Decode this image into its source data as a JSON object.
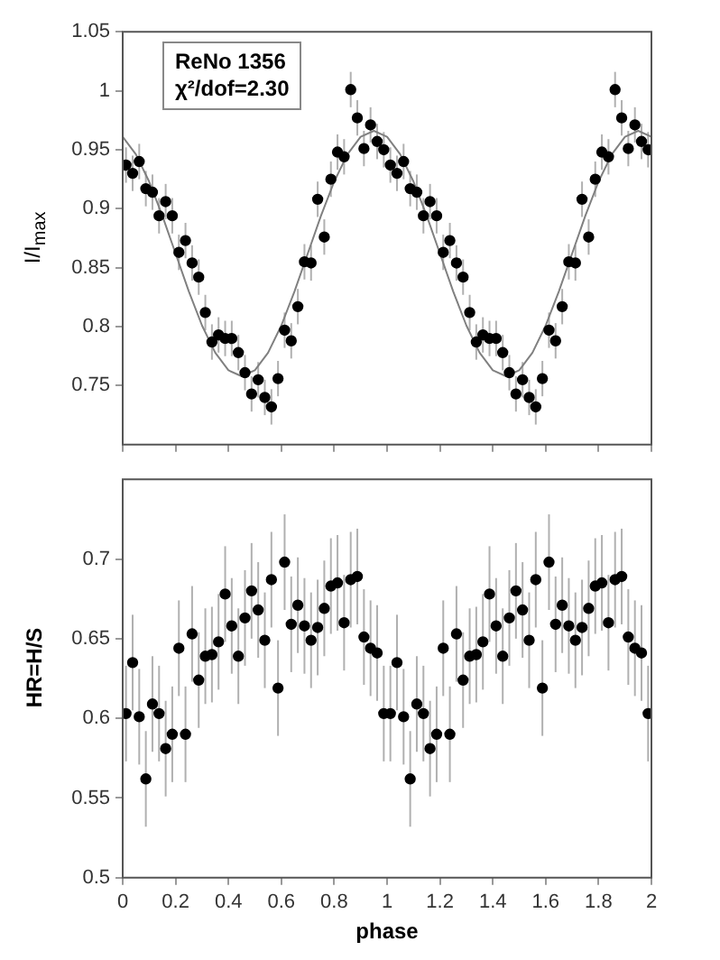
{
  "chart_data": [
    {
      "type": "scatter",
      "ylabel": "I/I$_{max}$",
      "annotations": [
        "ReNo 1356",
        "χ²/dof=2.30"
      ],
      "xlim": [
        0,
        2
      ],
      "xticks": [
        0,
        0.2,
        0.4,
        0.6,
        0.8,
        1,
        1.2,
        1.4,
        1.6,
        1.8,
        2
      ],
      "ylim": [
        0.7,
        1.05
      ],
      "yticks": [
        0.75,
        0.8,
        0.85,
        0.9,
        0.95,
        1,
        1.05
      ],
      "tick_labels": "y",
      "grid": false,
      "legend": false,
      "marker": "circle",
      "series": [
        {
          "type": "scatter",
          "color": "#000000",
          "x": [
            0.0125,
            0.0375,
            0.0625,
            0.0875,
            0.1125,
            0.1375,
            0.1625,
            0.1875,
            0.2125,
            0.2375,
            0.2625,
            0.2875,
            0.3125,
            0.3375,
            0.3625,
            0.3875,
            0.4125,
            0.4375,
            0.4625,
            0.4875,
            0.5125,
            0.5375,
            0.5625,
            0.5875,
            0.6125,
            0.6375,
            0.6625,
            0.6875,
            0.7125,
            0.7375,
            0.7625,
            0.7875,
            0.8125,
            0.8375,
            0.8625,
            0.8875,
            0.9125,
            0.9375,
            0.9625,
            0.9875,
            1.0125,
            1.0375,
            1.0625,
            1.0875,
            1.1125,
            1.1375,
            1.1625,
            1.1875,
            1.2125,
            1.2375,
            1.2625,
            1.2875,
            1.3125,
            1.3375,
            1.3625,
            1.3875,
            1.4125,
            1.4375,
            1.4625,
            1.4875,
            1.5125,
            1.5375,
            1.5625,
            1.5875,
            1.6125,
            1.6375,
            1.6625,
            1.6875,
            1.7125,
            1.7375,
            1.7625,
            1.7875,
            1.8125,
            1.8375,
            1.8625,
            1.8875,
            1.9125,
            1.9375,
            1.9625,
            1.9875
          ],
          "values": [
            0.937,
            0.93,
            0.94,
            0.917,
            0.914,
            0.894,
            0.906,
            0.894,
            0.863,
            0.873,
            0.854,
            0.842,
            0.812,
            0.787,
            0.793,
            0.79,
            0.79,
            0.778,
            0.761,
            0.743,
            0.755,
            0.74,
            0.732,
            0.756,
            0.797,
            0.788,
            0.817,
            0.855,
            0.854,
            0.908,
            0.876,
            0.925,
            0.948,
            0.944,
            1.001,
            0.977,
            0.951,
            0.971,
            0.957,
            0.95,
            0.937,
            0.93,
            0.94,
            0.917,
            0.914,
            0.894,
            0.906,
            0.894,
            0.863,
            0.873,
            0.854,
            0.842,
            0.812,
            0.787,
            0.793,
            0.79,
            0.79,
            0.778,
            0.761,
            0.743,
            0.755,
            0.74,
            0.732,
            0.756,
            0.797,
            0.788,
            0.817,
            0.855,
            0.854,
            0.908,
            0.876,
            0.925,
            0.948,
            0.944,
            1.001,
            0.977,
            0.951,
            0.971,
            0.957,
            0.95
          ],
          "errors": [
            0.015,
            0.015,
            0.015,
            0.015,
            0.015,
            0.015,
            0.015,
            0.015,
            0.015,
            0.015,
            0.015,
            0.015,
            0.015,
            0.015,
            0.015,
            0.015,
            0.015,
            0.015,
            0.015,
            0.015,
            0.015,
            0.015,
            0.015,
            0.015,
            0.015,
            0.015,
            0.015,
            0.015,
            0.015,
            0.015,
            0.015,
            0.015,
            0.015,
            0.015,
            0.015,
            0.015,
            0.015,
            0.015,
            0.015,
            0.015,
            0.015,
            0.015,
            0.015,
            0.015,
            0.015,
            0.015,
            0.015,
            0.015,
            0.015,
            0.015,
            0.015,
            0.015,
            0.015,
            0.015,
            0.015,
            0.015,
            0.015,
            0.015,
            0.015,
            0.015,
            0.015,
            0.015,
            0.015,
            0.015,
            0.015,
            0.015,
            0.015,
            0.015,
            0.015,
            0.015,
            0.015,
            0.015,
            0.015,
            0.015,
            0.015,
            0.015,
            0.015,
            0.015,
            0.015,
            0.015
          ]
        },
        {
          "type": "line",
          "color": "#808080",
          "line_style": "solid",
          "marker": "none",
          "x": [
            0,
            0.05,
            0.1,
            0.15,
            0.2,
            0.25,
            0.3,
            0.35,
            0.4,
            0.45,
            0.5,
            0.55,
            0.6,
            0.65,
            0.7,
            0.75,
            0.8,
            0.85,
            0.9,
            0.95,
            1,
            1.05,
            1.1,
            1.15,
            1.2,
            1.25,
            1.3,
            1.35,
            1.4,
            1.45,
            1.5,
            1.55,
            1.6,
            1.65,
            1.7,
            1.75,
            1.8,
            1.85,
            1.9,
            1.95,
            2
          ],
          "values": [
            0.961,
            0.946,
            0.923,
            0.894,
            0.862,
            0.83,
            0.801,
            0.778,
            0.763,
            0.758,
            0.763,
            0.778,
            0.801,
            0.83,
            0.862,
            0.894,
            0.923,
            0.946,
            0.961,
            0.966,
            0.961,
            0.946,
            0.923,
            0.894,
            0.862,
            0.83,
            0.801,
            0.778,
            0.763,
            0.758,
            0.763,
            0.778,
            0.801,
            0.83,
            0.862,
            0.894,
            0.923,
            0.946,
            0.961,
            0.966,
            0.961
          ]
        }
      ]
    },
    {
      "type": "scatter",
      "xlabel": "phase",
      "ylabel": "HR=H/S",
      "xlim": [
        0,
        2
      ],
      "xticks": [
        0,
        0.2,
        0.4,
        0.6,
        0.8,
        1,
        1.2,
        1.4,
        1.6,
        1.8,
        2
      ],
      "ylim": [
        0.5,
        0.75
      ],
      "yticks": [
        0.5,
        0.55,
        0.6,
        0.65,
        0.7
      ],
      "grid": false,
      "legend": false,
      "marker": "circle",
      "series": [
        {
          "type": "scatter",
          "color": "#000000",
          "x": [
            0.0125,
            0.0375,
            0.0625,
            0.0875,
            0.1125,
            0.1375,
            0.1625,
            0.1875,
            0.2125,
            0.2375,
            0.2625,
            0.2875,
            0.3125,
            0.3375,
            0.3625,
            0.3875,
            0.4125,
            0.4375,
            0.4625,
            0.4875,
            0.5125,
            0.5375,
            0.5625,
            0.5875,
            0.6125,
            0.6375,
            0.6625,
            0.6875,
            0.7125,
            0.7375,
            0.7625,
            0.7875,
            0.8125,
            0.8375,
            0.8625,
            0.8875,
            0.9125,
            0.9375,
            0.9625,
            0.9875,
            1.0125,
            1.0375,
            1.0625,
            1.0875,
            1.1125,
            1.1375,
            1.1625,
            1.1875,
            1.2125,
            1.2375,
            1.2625,
            1.2875,
            1.3125,
            1.3375,
            1.3625,
            1.3875,
            1.4125,
            1.4375,
            1.4625,
            1.4875,
            1.5125,
            1.5375,
            1.5625,
            1.5875,
            1.6125,
            1.6375,
            1.6625,
            1.6875,
            1.7125,
            1.7375,
            1.7625,
            1.7875,
            1.8125,
            1.8375,
            1.8625,
            1.8875,
            1.9125,
            1.9375,
            1.9625,
            1.9875
          ],
          "values": [
            0.603,
            0.635,
            0.601,
            0.562,
            0.609,
            0.603,
            0.581,
            0.59,
            0.644,
            0.59,
            0.653,
            0.624,
            0.639,
            0.64,
            0.648,
            0.678,
            0.658,
            0.639,
            0.663,
            0.68,
            0.668,
            0.649,
            0.687,
            0.619,
            0.698,
            0.659,
            0.671,
            0.658,
            0.649,
            0.657,
            0.669,
            0.683,
            0.685,
            0.66,
            0.687,
            0.689,
            0.651,
            0.644,
            0.641,
            0.603,
            0.603,
            0.635,
            0.601,
            0.562,
            0.609,
            0.603,
            0.581,
            0.59,
            0.644,
            0.59,
            0.653,
            0.624,
            0.639,
            0.64,
            0.648,
            0.678,
            0.658,
            0.639,
            0.663,
            0.68,
            0.668,
            0.649,
            0.687,
            0.619,
            0.698,
            0.659,
            0.671,
            0.658,
            0.649,
            0.657,
            0.669,
            0.683,
            0.685,
            0.66,
            0.687,
            0.689,
            0.651,
            0.644,
            0.641,
            0.603
          ],
          "errors": [
            0.03,
            0.03,
            0.03,
            0.03,
            0.03,
            0.03,
            0.03,
            0.03,
            0.03,
            0.03,
            0.03,
            0.03,
            0.03,
            0.03,
            0.03,
            0.03,
            0.03,
            0.03,
            0.03,
            0.03,
            0.03,
            0.03,
            0.03,
            0.03,
            0.03,
            0.03,
            0.03,
            0.03,
            0.03,
            0.03,
            0.03,
            0.03,
            0.03,
            0.03,
            0.03,
            0.03,
            0.03,
            0.03,
            0.03,
            0.03,
            0.03,
            0.03,
            0.03,
            0.03,
            0.03,
            0.03,
            0.03,
            0.03,
            0.03,
            0.03,
            0.03,
            0.03,
            0.03,
            0.03,
            0.03,
            0.03,
            0.03,
            0.03,
            0.03,
            0.03,
            0.03,
            0.03,
            0.03,
            0.03,
            0.03,
            0.03,
            0.03,
            0.03,
            0.03,
            0.03,
            0.03,
            0.03,
            0.03,
            0.03,
            0.03,
            0.03,
            0.03,
            0.03,
            0.03,
            0.03
          ]
        }
      ]
    }
  ]
}
